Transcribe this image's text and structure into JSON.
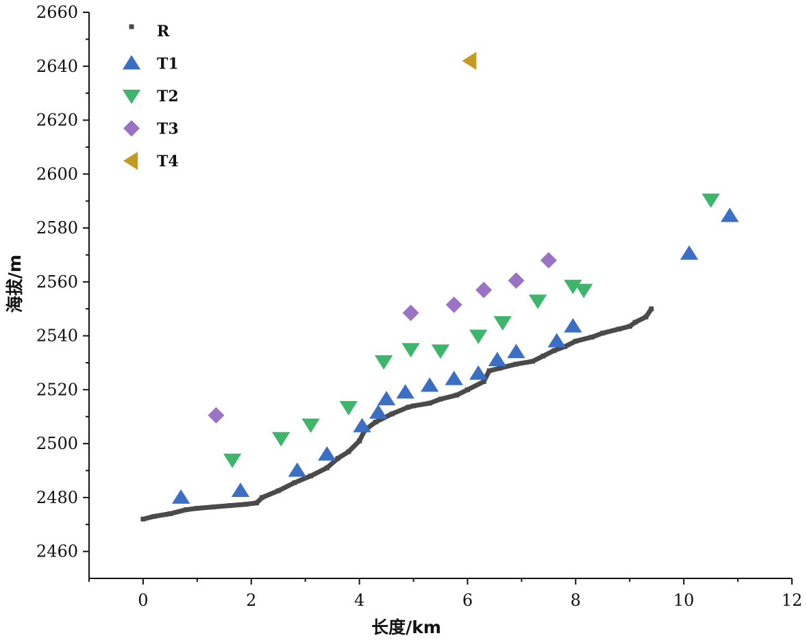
{
  "chart_data": {
    "type": "scatter",
    "xlabel": "长度/km",
    "ylabel": "海拔/m",
    "xlim": [
      -1,
      12
    ],
    "ylim": [
      2450,
      2660
    ],
    "xticks": [
      0,
      2,
      4,
      6,
      8,
      10,
      12
    ],
    "yticks": [
      2460,
      2480,
      2500,
      2520,
      2540,
      2560,
      2580,
      2600,
      2620,
      2640,
      2660
    ],
    "legend_position": "top-left",
    "grid": false,
    "series": [
      {
        "name": "R",
        "marker": "square-small",
        "color": "#4a4a4a",
        "x": [
          0,
          0.2,
          0.5,
          0.8,
          1.0,
          1.3,
          1.6,
          1.9,
          2.1,
          2.2,
          2.5,
          2.8,
          3.1,
          3.4,
          3.6,
          3.8,
          4.0,
          4.1,
          4.3,
          4.6,
          4.9,
          5.0,
          5.3,
          5.5,
          5.8,
          6.0,
          6.3,
          6.4,
          6.6,
          6.9,
          7.2,
          7.4,
          7.6,
          7.8,
          8.0,
          8.3,
          8.5,
          8.8,
          9.0,
          9.1,
          9.3,
          9.4
        ],
        "y": [
          2472,
          2473,
          2474,
          2475.5,
          2476,
          2476.5,
          2477,
          2477.5,
          2478,
          2480,
          2482.5,
          2485.5,
          2488,
          2491,
          2494.5,
          2497,
          2501,
          2505,
          2508,
          2511,
          2513.5,
          2514,
          2515,
          2516.5,
          2518,
          2520,
          2523,
          2527,
          2528,
          2529.5,
          2530.5,
          2532.5,
          2534.5,
          2536,
          2538,
          2539.5,
          2541,
          2542.5,
          2543.5,
          2545,
          2547,
          2550
        ]
      },
      {
        "name": "T1",
        "marker": "triangle-up",
        "color": "#3a6fc4",
        "x": [
          0.7,
          1.8,
          2.85,
          3.4,
          4.05,
          4.35,
          4.5,
          4.85,
          5.3,
          5.75,
          6.2,
          6.55,
          6.9,
          7.65,
          7.95,
          10.1,
          10.85
        ],
        "y": [
          2480,
          2482.5,
          2490,
          2496,
          2506.5,
          2511.5,
          2516.5,
          2519,
          2521.5,
          2524,
          2526,
          2531,
          2534,
          2538,
          2543.5,
          2570.5,
          2584.5
        ]
      },
      {
        "name": "T2",
        "marker": "triangle-down",
        "color": "#3db56a",
        "x": [
          1.65,
          2.55,
          3.1,
          3.8,
          4.45,
          4.95,
          5.5,
          6.2,
          6.65,
          7.3,
          7.95,
          8.15,
          10.5
        ],
        "y": [
          2494,
          2502,
          2507,
          2513.5,
          2530.5,
          2535,
          2534.5,
          2540,
          2545,
          2553,
          2558.5,
          2557,
          2590.5
        ]
      },
      {
        "name": "T3",
        "marker": "diamond",
        "color": "#9a73c4",
        "x": [
          1.35,
          4.95,
          5.75,
          6.3,
          6.9,
          7.5
        ],
        "y": [
          2510.5,
          2548.5,
          2551.5,
          2557,
          2560.5,
          2568
        ]
      },
      {
        "name": "T4",
        "marker": "triangle-left",
        "color": "#c49a24",
        "x": [
          6.05
        ],
        "y": [
          2642
        ]
      }
    ]
  }
}
